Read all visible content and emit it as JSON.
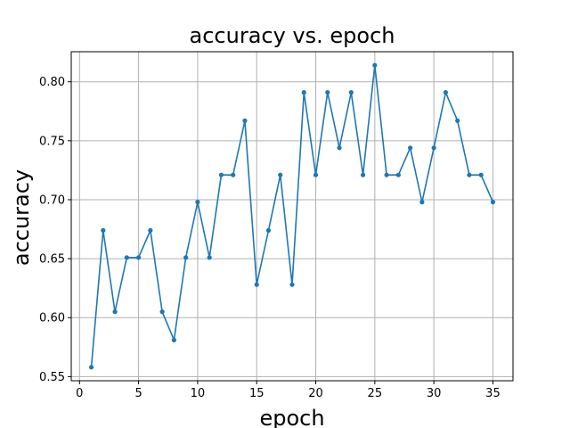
{
  "chart_data": {
    "type": "line",
    "title": "accuracy vs. epoch",
    "xlabel": "epoch",
    "ylabel": "accuracy",
    "xlim": [
      -0.7,
      36.7
    ],
    "ylim": [
      0.5465,
      0.8255
    ],
    "xticks": [
      0,
      5,
      10,
      15,
      20,
      25,
      30,
      35
    ],
    "xtick_labels": [
      "0",
      "5",
      "10",
      "15",
      "20",
      "25",
      "30",
      "35"
    ],
    "yticks": [
      0.55,
      0.6,
      0.65,
      0.7,
      0.75,
      0.8
    ],
    "ytick_labels": [
      "0.55",
      "0.60",
      "0.65",
      "0.70",
      "0.75",
      "0.80"
    ],
    "grid": true,
    "legend": "none",
    "series": [
      {
        "color": "#1f77b4",
        "marker": "circle",
        "x": [
          1,
          2,
          3,
          4,
          5,
          6,
          7,
          8,
          9,
          10,
          11,
          12,
          13,
          14,
          15,
          16,
          17,
          18,
          19,
          20,
          21,
          22,
          23,
          24,
          25,
          26,
          27,
          28,
          29,
          30,
          31,
          32,
          33,
          34,
          35
        ],
        "y": [
          0.558,
          0.674,
          0.605,
          0.651,
          0.651,
          0.674,
          0.605,
          0.581,
          0.651,
          0.698,
          0.651,
          0.721,
          0.721,
          0.767,
          0.628,
          0.674,
          0.721,
          0.628,
          0.791,
          0.721,
          0.791,
          0.744,
          0.791,
          0.721,
          0.814,
          0.721,
          0.721,
          0.744,
          0.698,
          0.744,
          0.791,
          0.767,
          0.721,
          0.721,
          0.698
        ]
      }
    ]
  }
}
